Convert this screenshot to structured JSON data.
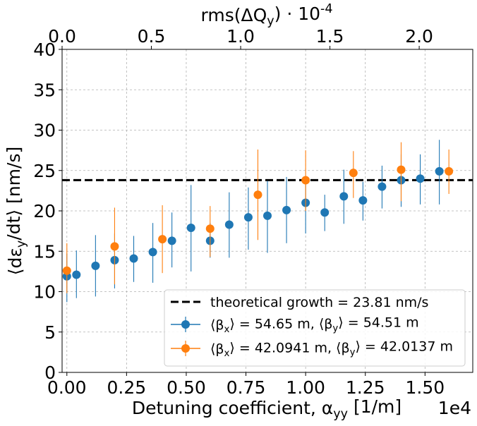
{
  "chart_data": {
    "type": "scatter",
    "title": "",
    "xlabel": "Detuning coefficient, α_yy [1/m]",
    "x_offset_text": "1e4",
    "x_units_scale": 10000,
    "ylabel": "⟨dε_y/dt⟩ [nm/s]",
    "top_xlabel": "rms(ΔQ_y) · 10^-4",
    "xlim": [
      -0.02,
      1.7
    ],
    "ylim": [
      0,
      40
    ],
    "top_xlim": [
      0.0,
      2.3
    ],
    "grid": true,
    "legend_position": "lower-right",
    "x_tick_labels": [
      "0.00",
      "0.25",
      "0.50",
      "0.75",
      "1.00",
      "1.25",
      "1.50"
    ],
    "y_tick_labels": [
      "0",
      "5",
      "10",
      "15",
      "20",
      "25",
      "30",
      "35",
      "40"
    ],
    "top_tick_labels": [
      "0.0",
      "0.5",
      "1.0",
      "1.5",
      "2.0"
    ],
    "reference_line": {
      "label": "theoretical growth = 23.81 nm/s",
      "y": 23.81,
      "color": "#000000",
      "style": "dashed"
    },
    "series": [
      {
        "name": "⟨β_x⟩ = 54.65 m, ⟨β_y⟩ = 54.51 m",
        "color": "#1f77b4",
        "x": [
          0.0,
          0.04,
          0.12,
          0.2,
          0.28,
          0.36,
          0.44,
          0.52,
          0.6,
          0.68,
          0.76,
          0.84,
          0.92,
          1.0,
          1.08,
          1.16,
          1.24,
          1.32,
          1.4,
          1.48,
          1.56
        ],
        "y": [
          11.9,
          12.1,
          13.2,
          13.9,
          14.1,
          14.9,
          16.3,
          17.9,
          16.3,
          18.3,
          19.2,
          19.4,
          20.1,
          21.0,
          19.8,
          21.8,
          21.3,
          23.0,
          23.8,
          24.0,
          24.9
        ],
        "err_low": [
          8.7,
          9.2,
          9.4,
          10.4,
          11.2,
          11.1,
          13.0,
          12.5,
          14.2,
          14.2,
          15.2,
          14.8,
          16.0,
          17.2,
          17.5,
          18.4,
          18.8,
          20.3,
          20.5,
          20.8,
          20.8
        ],
        "err_high": [
          14.7,
          15.1,
          17.0,
          17.2,
          16.9,
          18.5,
          19.8,
          23.2,
          18.5,
          22.3,
          22.9,
          23.7,
          24.2,
          24.1,
          22.0,
          25.1,
          23.6,
          25.6,
          27.0,
          27.0,
          28.8
        ]
      },
      {
        "name": "⟨β_x⟩ = 42.0941 m, ⟨β_y⟩ = 42.0137 m",
        "color": "#ff7f0e",
        "x": [
          0.0,
          0.2,
          0.4,
          0.6,
          0.8,
          1.0,
          1.2,
          1.4,
          1.6
        ],
        "y": [
          12.6,
          15.6,
          16.5,
          17.8,
          22.0,
          23.8,
          24.7,
          25.1,
          24.9
        ],
        "err_low": [
          9.8,
          10.9,
          12.3,
          14.3,
          16.4,
          20.0,
          21.6,
          21.2,
          22.1
        ],
        "err_high": [
          16.0,
          20.4,
          20.7,
          20.6,
          27.6,
          27.5,
          27.4,
          28.5,
          27.6
        ]
      }
    ]
  }
}
